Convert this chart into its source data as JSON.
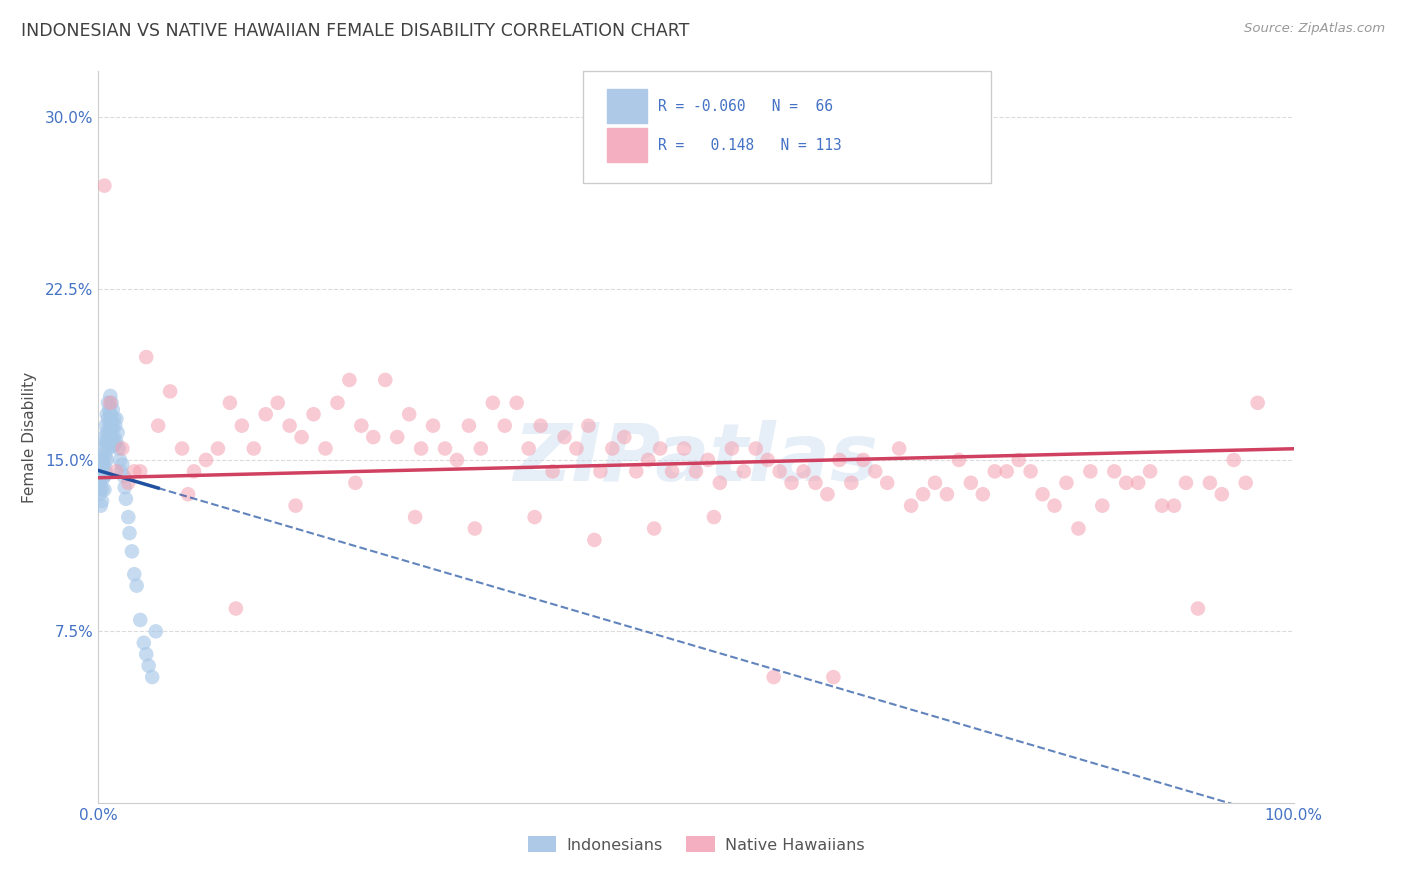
{
  "title": "INDONESIAN VS NATIVE HAWAIIAN FEMALE DISABILITY CORRELATION CHART",
  "source": "Source: ZipAtlas.com",
  "ylabel": "Female Disability",
  "xlim": [
    0.0,
    1.0
  ],
  "ylim": [
    0.0,
    0.32
  ],
  "yticks": [
    0.075,
    0.15,
    0.225,
    0.3
  ],
  "ytick_labels": [
    "7.5%",
    "15.0%",
    "22.5%",
    "30.0%"
  ],
  "xticks": [
    0.0,
    0.25,
    0.5,
    0.75,
    1.0
  ],
  "xtick_labels": [
    "0.0%",
    "",
    "",
    "",
    "100.0%"
  ],
  "indonesian_r": -0.06,
  "indonesian_n": 66,
  "hawaiian_r": 0.148,
  "hawaiian_n": 113,
  "indonesian_color": "#a8c8e8",
  "hawaiian_color": "#f4a0b0",
  "indonesian_line_color": "#2050a0",
  "hawaiian_line_color": "#d04060",
  "background_color": "#ffffff",
  "grid_color": "#d8d8d8",
  "title_color": "#404040",
  "axis_label_color": "#4472c4",
  "indonesian_scatter_x": [
    0.001,
    0.001,
    0.002,
    0.002,
    0.002,
    0.003,
    0.003,
    0.003,
    0.003,
    0.004,
    0.004,
    0.004,
    0.005,
    0.005,
    0.005,
    0.005,
    0.005,
    0.006,
    0.006,
    0.006,
    0.006,
    0.007,
    0.007,
    0.007,
    0.007,
    0.008,
    0.008,
    0.008,
    0.009,
    0.009,
    0.009,
    0.01,
    0.01,
    0.01,
    0.01,
    0.011,
    0.011,
    0.011,
    0.012,
    0.012,
    0.012,
    0.013,
    0.013,
    0.014,
    0.014,
    0.015,
    0.015,
    0.016,
    0.017,
    0.018,
    0.019,
    0.02,
    0.021,
    0.022,
    0.023,
    0.025,
    0.026,
    0.028,
    0.03,
    0.032,
    0.035,
    0.038,
    0.04,
    0.042,
    0.045,
    0.048
  ],
  "indonesian_scatter_y": [
    0.14,
    0.135,
    0.145,
    0.138,
    0.13,
    0.15,
    0.143,
    0.137,
    0.132,
    0.148,
    0.155,
    0.142,
    0.16,
    0.153,
    0.148,
    0.143,
    0.137,
    0.165,
    0.158,
    0.152,
    0.145,
    0.17,
    0.162,
    0.157,
    0.15,
    0.175,
    0.168,
    0.16,
    0.172,
    0.165,
    0.158,
    0.178,
    0.17,
    0.163,
    0.156,
    0.175,
    0.167,
    0.16,
    0.172,
    0.164,
    0.156,
    0.168,
    0.16,
    0.165,
    0.157,
    0.168,
    0.158,
    0.162,
    0.155,
    0.15,
    0.145,
    0.148,
    0.143,
    0.138,
    0.133,
    0.125,
    0.118,
    0.11,
    0.1,
    0.095,
    0.08,
    0.07,
    0.065,
    0.06,
    0.055,
    0.075
  ],
  "hawaiian_scatter_x": [
    0.005,
    0.01,
    0.015,
    0.02,
    0.025,
    0.03,
    0.04,
    0.05,
    0.06,
    0.07,
    0.08,
    0.09,
    0.1,
    0.11,
    0.12,
    0.13,
    0.14,
    0.15,
    0.16,
    0.17,
    0.18,
    0.19,
    0.2,
    0.21,
    0.22,
    0.23,
    0.24,
    0.25,
    0.26,
    0.27,
    0.28,
    0.29,
    0.3,
    0.31,
    0.32,
    0.33,
    0.34,
    0.35,
    0.36,
    0.37,
    0.38,
    0.39,
    0.4,
    0.41,
    0.42,
    0.43,
    0.44,
    0.45,
    0.46,
    0.47,
    0.48,
    0.49,
    0.5,
    0.51,
    0.52,
    0.53,
    0.54,
    0.55,
    0.56,
    0.57,
    0.58,
    0.59,
    0.6,
    0.61,
    0.62,
    0.63,
    0.64,
    0.65,
    0.66,
    0.67,
    0.68,
    0.69,
    0.7,
    0.71,
    0.72,
    0.73,
    0.74,
    0.75,
    0.76,
    0.77,
    0.78,
    0.79,
    0.8,
    0.81,
    0.82,
    0.83,
    0.84,
    0.85,
    0.86,
    0.87,
    0.88,
    0.89,
    0.9,
    0.91,
    0.92,
    0.93,
    0.94,
    0.95,
    0.96,
    0.97,
    0.035,
    0.075,
    0.115,
    0.165,
    0.215,
    0.265,
    0.315,
    0.365,
    0.415,
    0.465,
    0.515,
    0.565,
    0.615
  ],
  "hawaiian_scatter_y": [
    0.27,
    0.175,
    0.145,
    0.155,
    0.14,
    0.145,
    0.195,
    0.165,
    0.18,
    0.155,
    0.145,
    0.15,
    0.155,
    0.175,
    0.165,
    0.155,
    0.17,
    0.175,
    0.165,
    0.16,
    0.17,
    0.155,
    0.175,
    0.185,
    0.165,
    0.16,
    0.185,
    0.16,
    0.17,
    0.155,
    0.165,
    0.155,
    0.15,
    0.165,
    0.155,
    0.175,
    0.165,
    0.175,
    0.155,
    0.165,
    0.145,
    0.16,
    0.155,
    0.165,
    0.145,
    0.155,
    0.16,
    0.145,
    0.15,
    0.155,
    0.145,
    0.155,
    0.145,
    0.15,
    0.14,
    0.155,
    0.145,
    0.155,
    0.15,
    0.145,
    0.14,
    0.145,
    0.14,
    0.135,
    0.15,
    0.14,
    0.15,
    0.145,
    0.14,
    0.155,
    0.13,
    0.135,
    0.14,
    0.135,
    0.15,
    0.14,
    0.135,
    0.145,
    0.145,
    0.15,
    0.145,
    0.135,
    0.13,
    0.14,
    0.12,
    0.145,
    0.13,
    0.145,
    0.14,
    0.14,
    0.145,
    0.13,
    0.13,
    0.14,
    0.085,
    0.14,
    0.135,
    0.15,
    0.14,
    0.175,
    0.145,
    0.135,
    0.085,
    0.13,
    0.14,
    0.125,
    0.12,
    0.125,
    0.115,
    0.12,
    0.125,
    0.055,
    0.055
  ]
}
